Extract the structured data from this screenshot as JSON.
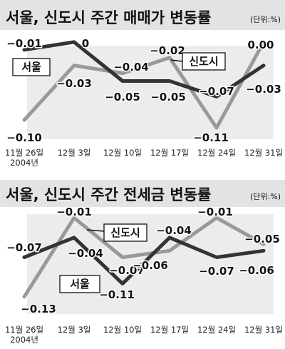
{
  "colors": {
    "seoul": "#333333",
    "newtown": "#999999",
    "plot_bg": "#ececec",
    "title_bg": "#e3e3e3"
  },
  "chart_data": [
    {
      "type": "line",
      "title": "서울, 신도시 주간 매매가 변동률",
      "unit": "(단위:%)",
      "categories": [
        "11월 26일",
        "12월 3일",
        "12월 10일",
        "12월 17일",
        "12월 24일",
        "12월 31일"
      ],
      "category_subtitle": "2004년",
      "series": [
        {
          "name": "서울",
          "values": [
            -0.01,
            0,
            -0.05,
            -0.05,
            -0.07,
            -0.03
          ],
          "labels": [
            "−0.01",
            "0",
            "−0.05",
            "−0.05",
            "−0.07",
            "−0.03"
          ]
        },
        {
          "name": "신도시",
          "values": [
            -0.1,
            -0.03,
            -0.04,
            -0.02,
            -0.11,
            0.0
          ],
          "labels": [
            "−0.10",
            "−0.03",
            "−0.04",
            "−0.02",
            "−0.11",
            "0.00"
          ]
        }
      ],
      "ylim": [
        -0.12,
        0.01
      ],
      "grid": false
    },
    {
      "type": "line",
      "title": "서울, 신도시 주간 전세금 변동률",
      "unit": "(단위:%)",
      "categories": [
        "11월 26일",
        "12월 3일",
        "12월 10일",
        "12월 17일",
        "12월 24일",
        "12월 31일"
      ],
      "category_subtitle": "2004년",
      "series": [
        {
          "name": "서울",
          "values": [
            -0.07,
            -0.04,
            -0.11,
            -0.04,
            -0.07,
            -0.06
          ],
          "labels": [
            "−0.07",
            "−0.04",
            "−0.11",
            "−0.04",
            "−0.07",
            "−0.06"
          ]
        },
        {
          "name": "신도시",
          "values": [
            -0.13,
            -0.01,
            -0.07,
            -0.06,
            -0.01,
            -0.05
          ],
          "labels": [
            "−0.13",
            "−0.01",
            "−0.07",
            "−0.06",
            "−0.01",
            "−0.05"
          ]
        }
      ],
      "ylim": [
        -0.14,
        0.0
      ],
      "grid": false
    }
  ]
}
